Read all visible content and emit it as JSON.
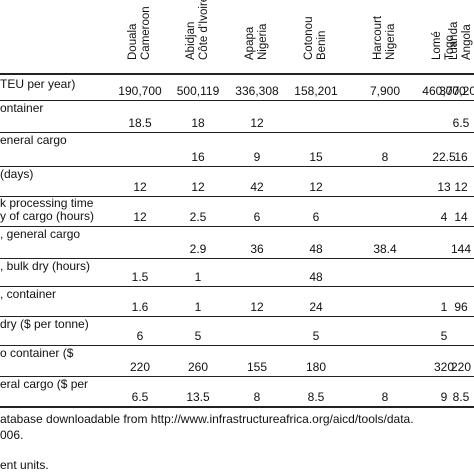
{
  "columns": [
    {
      "city": "Douala",
      "country": "Cameroon"
    },
    {
      "city": "Abidjan",
      "country": "Côte d'Ivoire"
    },
    {
      "city": "Apapa",
      "country": "Nigeria"
    },
    {
      "city": "Cotonou",
      "country": "Benin"
    },
    {
      "city": "Harcourt",
      "country": "Nigeria"
    },
    {
      "city": "Lomé",
      "country": "Togo"
    },
    {
      "city": "Luanda",
      "country": "Angola"
    }
  ],
  "rows": [
    {
      "label": "TEU per year)",
      "values": [
        "190,700",
        "500,119",
        "336,308",
        "158,201",
        "7,900",
        "460,000",
        "377,208"
      ]
    },
    {
      "label": "ontainer",
      "values": [
        "18.5",
        "18",
        "12",
        "",
        "",
        "",
        "6.5"
      ]
    },
    {
      "label": "eneral cargo",
      "values": [
        "",
        "16",
        "9",
        "15",
        "8",
        "22.5",
        "16"
      ]
    },
    {
      "label": "(days)",
      "values": [
        "12",
        "12",
        "42",
        "12",
        "",
        "13",
        "12"
      ]
    },
    {
      "label": "k processing time\ny of cargo (hours)",
      "values": [
        "12",
        "2.5",
        "6",
        "6",
        "",
        "4",
        "14"
      ]
    },
    {
      "label": ", general cargo",
      "values": [
        "",
        "2.9",
        "36",
        "48",
        "38.4",
        "",
        "144"
      ]
    },
    {
      "label": ", bulk dry (hours)",
      "values": [
        "1.5",
        "1",
        "",
        "48",
        "",
        "",
        ""
      ]
    },
    {
      "label": ", container",
      "values": [
        "1.6",
        "1",
        "12",
        "24",
        "",
        "1",
        "96"
      ]
    },
    {
      "label": "dry ($ per tonne)",
      "values": [
        "6",
        "5",
        "",
        "5",
        "",
        "5",
        ""
      ]
    },
    {
      "label": "o container ($",
      "values": [
        "220",
        "260",
        "155",
        "180",
        "",
        "320",
        "220"
      ]
    },
    {
      "label": "eral cargo ($ per",
      "values": [
        "6.5",
        "13.5",
        "8",
        "8.5",
        "8",
        "9",
        "8.5"
      ]
    }
  ],
  "footnotes": [
    "atabase downloadable from http://www.infrastructureafrica.org/aicd/tools/data.",
    "006.",
    "ent units."
  ]
}
